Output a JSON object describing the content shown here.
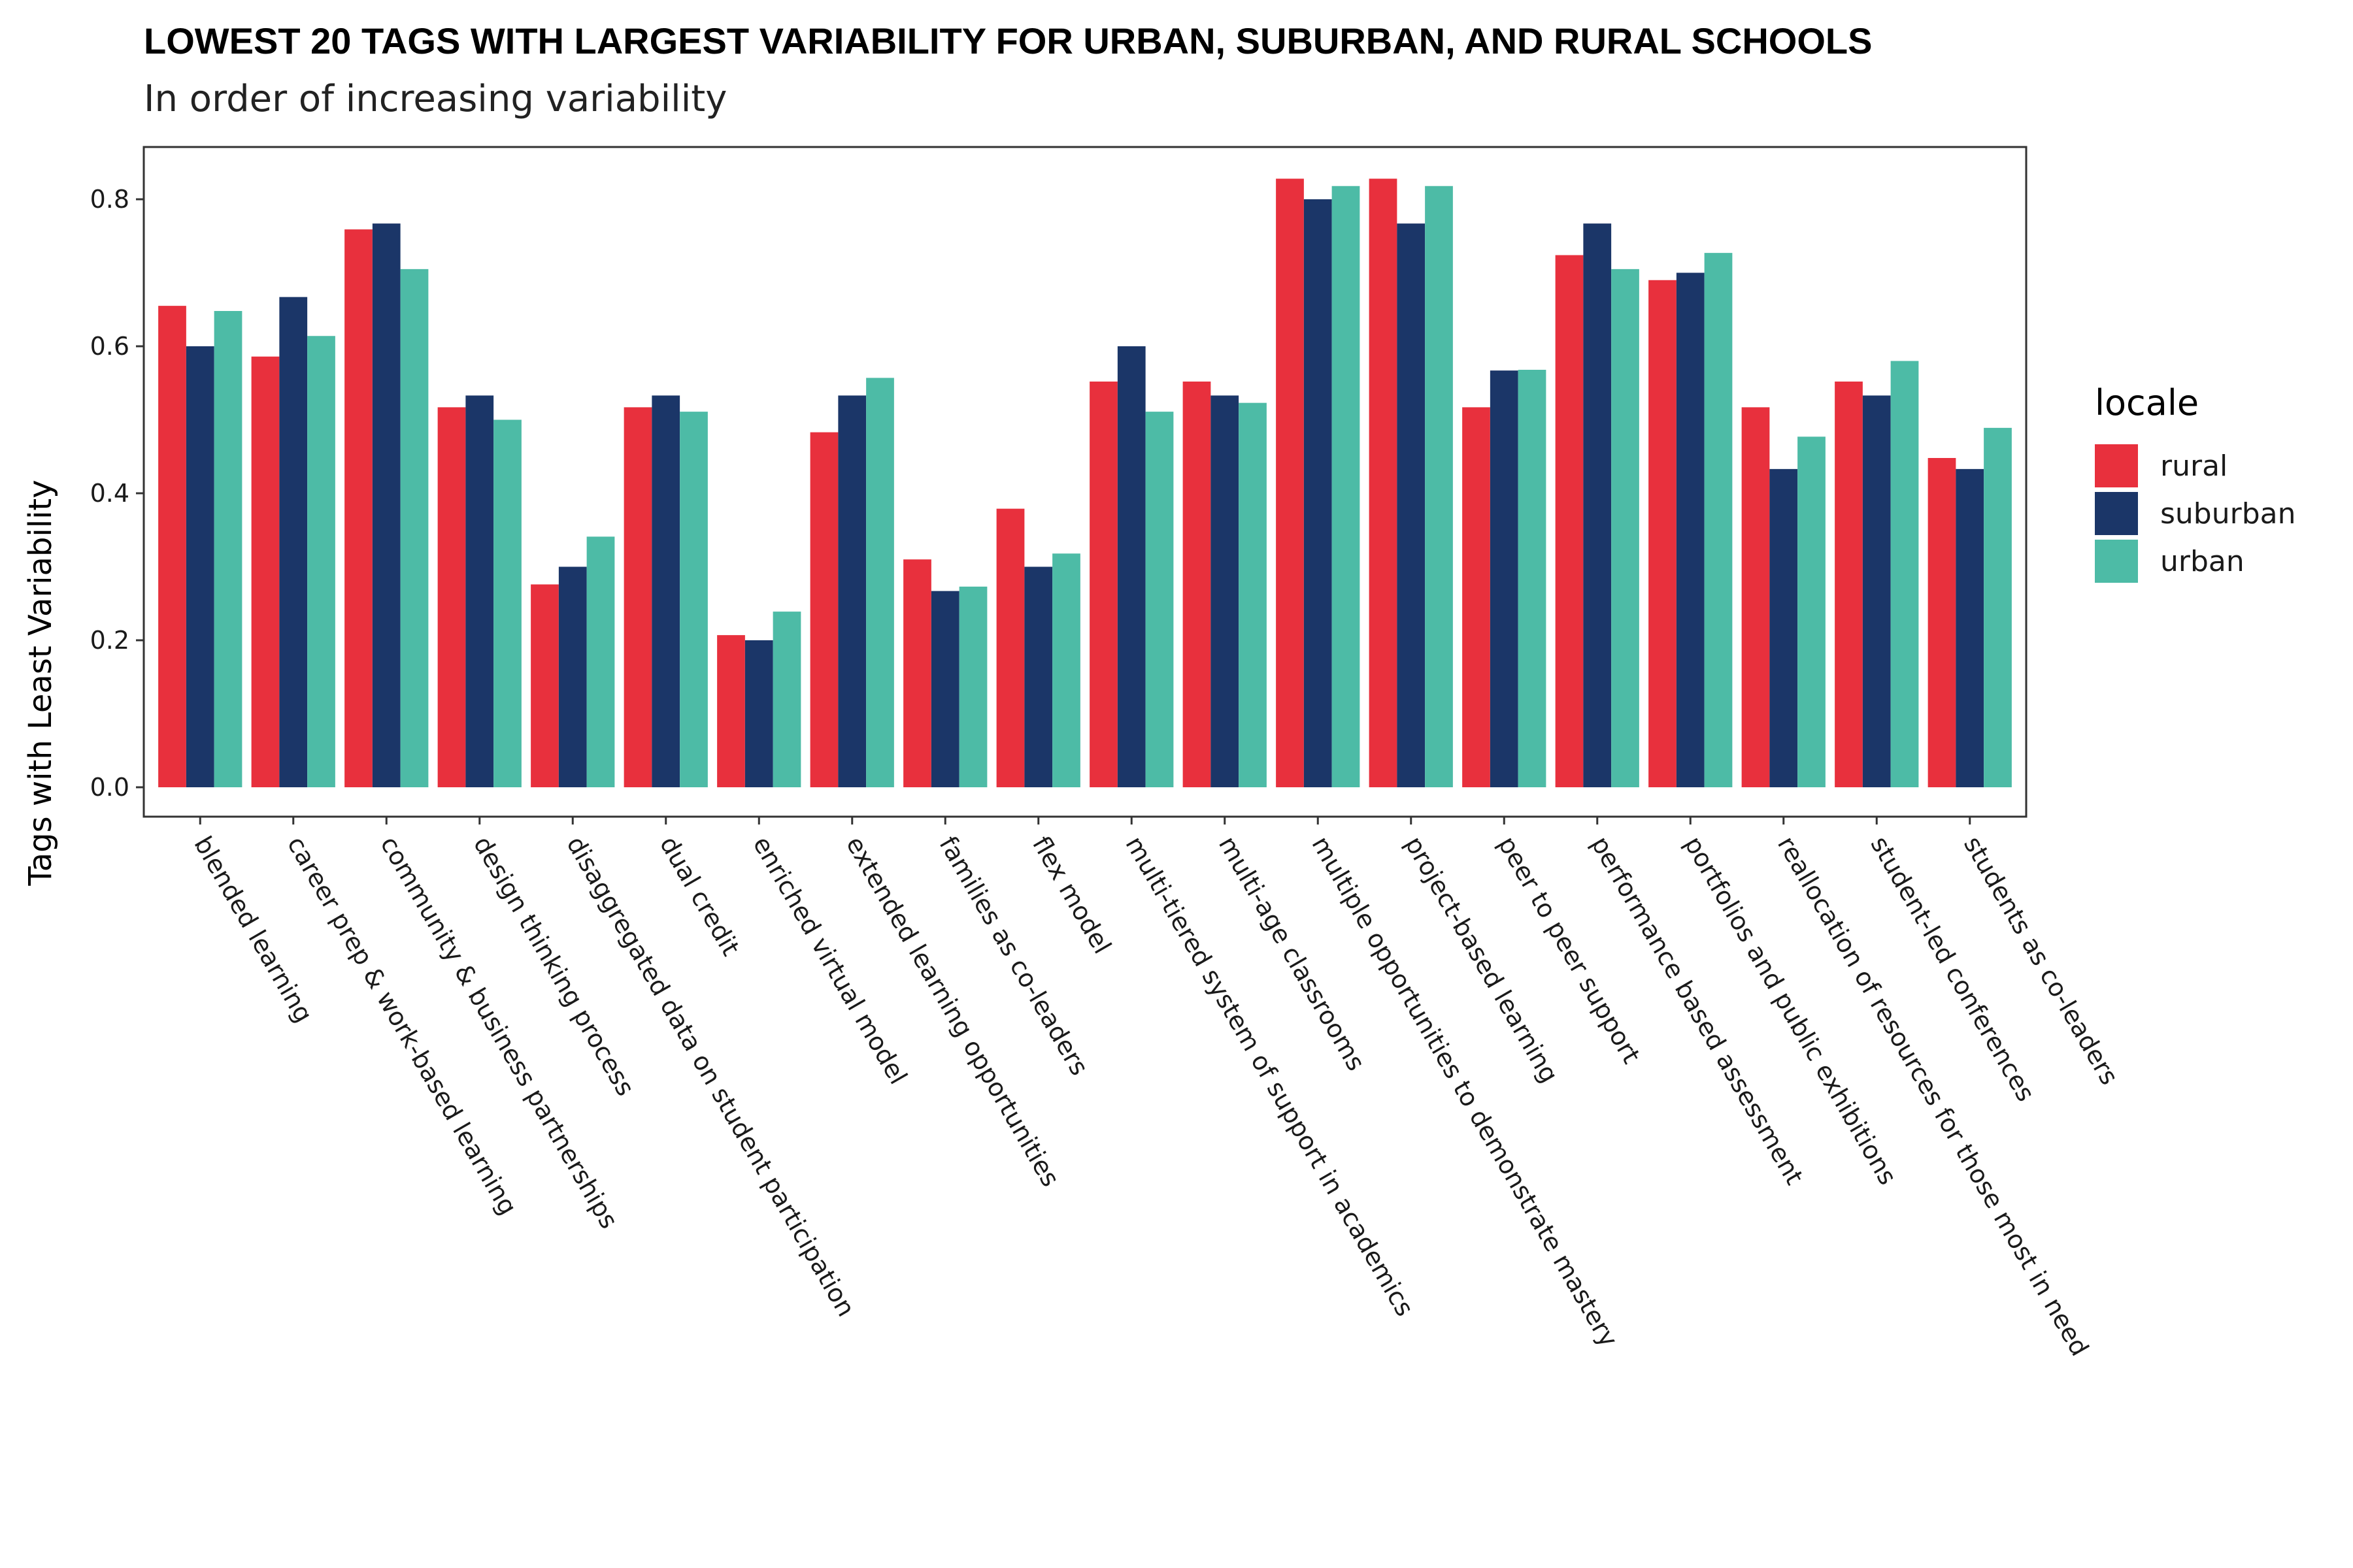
{
  "chart_data": {
    "type": "bar",
    "title": "LOWEST 20 TAGS WITH LARGEST VARIABILITY FOR URBAN, SUBURBAN, AND RURAL SCHOOLS",
    "subtitle": "In order of increasing variability",
    "xlabel": "",
    "ylabel": "Tags with Least Variability",
    "ylim": [
      0,
      0.86
    ],
    "yticks": [
      "0.0",
      "0.2",
      "0.4",
      "0.6",
      "0.8"
    ],
    "grid": false,
    "legend": {
      "title": "locale",
      "position": "right"
    },
    "categories": [
      "blended learning",
      "career prep & work-based learning",
      "community & business partnerships",
      "design thinking process",
      "disaggregated data on student participation",
      "dual credit",
      "enriched virtual model",
      "extended learning opportunities",
      "families as co-leaders",
      "flex model",
      "multi-tiered system of support in academics",
      "multi-age classrooms",
      "multiple opportunities to demonstrate mastery",
      "project-based learning",
      "peer to peer support",
      "performance based assessment",
      "portfolios and public exhibitions",
      "reallocation of resources for those most in need",
      "student-led conferences",
      "students as co-leaders"
    ],
    "series": [
      {
        "name": "rural",
        "color": "#E8303D",
        "values": [
          0.655,
          0.586,
          0.759,
          0.517,
          0.276,
          0.517,
          0.207,
          0.483,
          0.31,
          0.379,
          0.552,
          0.552,
          0.828,
          0.828,
          0.517,
          0.724,
          0.69,
          0.517,
          0.552,
          0.448
        ]
      },
      {
        "name": "suburban",
        "color": "#1B3668",
        "values": [
          0.6,
          0.667,
          0.767,
          0.533,
          0.3,
          0.533,
          0.2,
          0.533,
          0.267,
          0.3,
          0.6,
          0.533,
          0.8,
          0.767,
          0.567,
          0.767,
          0.7,
          0.433,
          0.533,
          0.433
        ]
      },
      {
        "name": "urban",
        "color": "#4DBBA6",
        "values": [
          0.648,
          0.614,
          0.705,
          0.5,
          0.341,
          0.511,
          0.239,
          0.557,
          0.273,
          0.318,
          0.511,
          0.523,
          0.818,
          0.818,
          0.568,
          0.705,
          0.727,
          0.477,
          0.58,
          0.489
        ]
      }
    ]
  }
}
